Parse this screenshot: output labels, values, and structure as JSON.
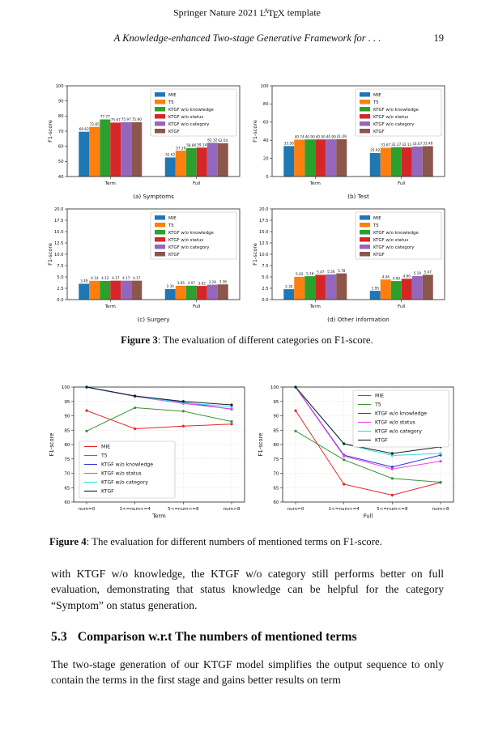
{
  "header": {
    "prefix": "Springer Nature 2021 ",
    "latex": {
      "l": "L",
      "a": "A",
      "t": "T",
      "e": "E",
      "x": "X"
    },
    "suffix": " template"
  },
  "running_head": {
    "title": "A Knowledge-enhanced Two-stage Generative Framework for . . .",
    "page": "19"
  },
  "figure3": {
    "label": "Figure 3",
    "caption": ": The evaluation of different categories on F1-score."
  },
  "figure4": {
    "label": "Figure 4",
    "caption": ": The evaluation for different numbers of mentioned terms on F1-score."
  },
  "body": {
    "para1": "with KTGF w/o knowledge, the KTGF w/o category still performs better on full evaluation, demonstrating that status knowledge can be helpful for the category “Symptom” on status generation.",
    "section": {
      "number": "5.3",
      "title": "Comparison w.r.t The numbers of mentioned terms"
    },
    "para2": "The two-stage generation of our KTGF model simplifies the output sequence to only contain the terms in the first stage and gains better results on term"
  },
  "chart_data": [
    {
      "type": "bar",
      "title": "(a) Symptoms",
      "ylabel": "F1-score",
      "ylim": [
        40,
        100
      ],
      "ystep": 10,
      "yfmt": "int",
      "grid": false,
      "categories": [
        "Term",
        "Full"
      ],
      "legend_pos": "top-right",
      "series": [
        {
          "name": "MIE",
          "color": "#1f77b4",
          "values": [
            "69.62",
            "52.62"
          ]
        },
        {
          "name": "T5",
          "color": "#ff7f0e",
          "values": [
            "72.85",
            "57.10"
          ]
        },
        {
          "name": "KTGF w/o knowledge",
          "color": "#2ca02c",
          "values": [
            "77.77",
            "58.86"
          ]
        },
        {
          "name": "KTGF w/o status",
          "color": "#d62728",
          "values": [
            "75.67",
            "59.14"
          ]
        },
        {
          "name": "KTGF w/o category",
          "color": "#9467bd",
          "values": [
            "75.97",
            "62.32"
          ]
        },
        {
          "name": "KTGF",
          "color": "#8c564b",
          "values": [
            "75.90",
            "62.04"
          ]
        }
      ]
    },
    {
      "type": "bar",
      "title": "(b) Test",
      "ylabel": "F1-score",
      "ylim": [
        0,
        100
      ],
      "ystep": 20,
      "yfmt": "int",
      "grid": false,
      "categories": [
        "Term",
        "Full"
      ],
      "legend_pos": "top-right",
      "series": [
        {
          "name": "MIE",
          "color": "#1f77b4",
          "values": [
            "33.58",
            "25.92"
          ]
        },
        {
          "name": "T5",
          "color": "#ff7f0e",
          "values": [
            "40.74",
            "31.67"
          ]
        },
        {
          "name": "KTGF w/o knowledge",
          "color": "#2ca02c",
          "values": [
            "40.90",
            "32.37"
          ]
        },
        {
          "name": "KTGF w/o status",
          "color": "#d62728",
          "values": [
            "40.90",
            "32.11"
          ]
        },
        {
          "name": "KTGF w/o category",
          "color": "#9467bd",
          "values": [
            "40.99",
            "33.07"
          ]
        },
        {
          "name": "KTGF",
          "color": "#8c564b",
          "values": [
            "41.09",
            "33.48"
          ]
        }
      ]
    },
    {
      "type": "bar",
      "title": "(c) Surgery",
      "ylabel": "F1-score",
      "ylim": [
        0,
        20
      ],
      "ystep": 2.5,
      "yfmt": "1dp",
      "grid": false,
      "categories": [
        "Term",
        "Full"
      ],
      "legend_pos": "top-right",
      "series": [
        {
          "name": "MIE",
          "color": "#1f77b4",
          "values": [
            "3.49",
            "2.34"
          ]
        },
        {
          "name": "T5",
          "color": "#ff7f0e",
          "values": [
            "4.14",
            "3.05"
          ]
        },
        {
          "name": "KTGF w/o knowledge",
          "color": "#2ca02c",
          "values": [
            "4.12",
            "3.07"
          ]
        },
        {
          "name": "KTGF w/o status",
          "color": "#d62728",
          "values": [
            "4.17",
            "3.02"
          ]
        },
        {
          "name": "KTGF w/o category",
          "color": "#9467bd",
          "values": [
            "4.17",
            "3.29"
          ]
        },
        {
          "name": "KTGF",
          "color": "#8c564b",
          "values": [
            "4.17",
            "3.36"
          ]
        }
      ]
    },
    {
      "type": "bar",
      "title": "(d) Other information",
      "ylabel": "F1-score",
      "ylim": [
        0,
        20
      ],
      "ystep": 2.5,
      "yfmt": "1dp",
      "grid": false,
      "categories": [
        "Term",
        "Full"
      ],
      "legend_pos": "top-right",
      "series": [
        {
          "name": "MIE",
          "color": "#1f77b4",
          "values": [
            "2.30",
            "1.95"
          ]
        },
        {
          "name": "T5",
          "color": "#ff7f0e",
          "values": [
            "5.02",
            "4.44"
          ]
        },
        {
          "name": "KTGF w/o knowledge",
          "color": "#2ca02c",
          "values": [
            "5.16",
            "4.09"
          ]
        },
        {
          "name": "KTGF w/o status",
          "color": "#d62728",
          "values": [
            "5.47",
            "4.60"
          ]
        },
        {
          "name": "KTGF w/o category",
          "color": "#9467bd",
          "values": [
            "5.56",
            "5.19"
          ]
        },
        {
          "name": "KTGF",
          "color": "#8c564b",
          "values": [
            "5.78",
            "5.47"
          ]
        }
      ]
    },
    {
      "type": "line",
      "xlabel": "Term",
      "ylabel": "F1-score",
      "ylim": [
        60,
        100
      ],
      "ystep": 5,
      "grid": true,
      "categories": [
        "num=0",
        "1<=num<=4",
        "5<=num<=8",
        "num>8"
      ],
      "legend_pos": "bottom-left",
      "series": [
        {
          "name": "MIE",
          "color": "#ec2028",
          "values": [
            91.8,
            85.5,
            86.4,
            87.1
          ]
        },
        {
          "name": "T5",
          "color": "#3a923a",
          "values": [
            84.7,
            92.8,
            91.6,
            88.0
          ]
        },
        {
          "name": "KTGF w/o knowledge",
          "color": "#3333d6",
          "values": [
            100,
            96.8,
            94.7,
            92.3
          ]
        },
        {
          "name": "KTGF w/o status",
          "color": "#ef3fef",
          "values": [
            99.9,
            96.7,
            94.3,
            92.4
          ]
        },
        {
          "name": "KTGF w/o category",
          "color": "#35dce0",
          "values": [
            99.9,
            96.8,
            94.5,
            93.2
          ]
        },
        {
          "name": "KTGF",
          "color": "#1c1c1c",
          "values": [
            100,
            96.9,
            95.0,
            93.8
          ]
        }
      ]
    },
    {
      "type": "line",
      "xlabel": "Full",
      "ylabel": "F1-score",
      "ylim": [
        60,
        100
      ],
      "ystep": 5,
      "grid": true,
      "categories": [
        "num=0",
        "1<=num<=4",
        "5<=num<=8",
        "num>8"
      ],
      "legend_pos": "top-right",
      "series": [
        {
          "name": "MIE",
          "color": "#ec2028",
          "values": [
            91.8,
            66.2,
            62.4,
            66.8
          ]
        },
        {
          "name": "T5",
          "color": "#3a923a",
          "values": [
            84.7,
            74.7,
            68.2,
            66.9
          ]
        },
        {
          "name": "KTGF w/o knowledge",
          "color": "#3333d6",
          "values": [
            100,
            76.3,
            72.2,
            76.3
          ]
        },
        {
          "name": "KTGF w/o status",
          "color": "#ef3fef",
          "values": [
            99.9,
            76.0,
            71.5,
            74.2
          ]
        },
        {
          "name": "KTGF w/o category",
          "color": "#35dce0",
          "values": [
            99.9,
            80.2,
            76.2,
            76.9
          ]
        },
        {
          "name": "KTGF",
          "color": "#1c1c1c",
          "values": [
            100,
            80.3,
            76.9,
            79.2
          ]
        }
      ]
    }
  ]
}
